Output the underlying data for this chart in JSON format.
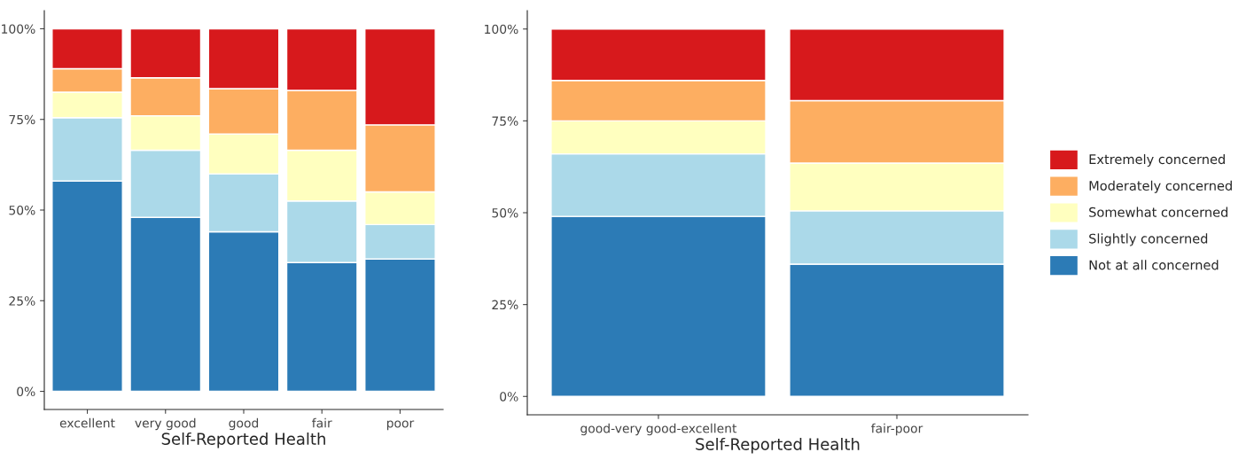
{
  "chart_data": [
    {
      "type": "bar",
      "stacked": true,
      "xlabel": "Self-Reported Health",
      "categories": [
        "excellent",
        "very good",
        "good",
        "fair",
        "poor"
      ],
      "ylim": [
        -5,
        105
      ],
      "yticks": [
        {
          "value": 0,
          "label": "0%"
        },
        {
          "value": 25,
          "label": "25%"
        },
        {
          "value": 50,
          "label": "50%"
        },
        {
          "value": 75,
          "label": "75%"
        },
        {
          "value": 100,
          "label": "100%"
        }
      ],
      "grid": false,
      "legend": false,
      "series": [
        {
          "color": "#2c7bb6",
          "values": [
            58,
            48,
            44,
            35.5,
            36.5
          ]
        },
        {
          "color": "#abd9e9",
          "values": [
            17.5,
            18.5,
            16,
            17,
            9.5
          ]
        },
        {
          "color": "#ffffbf",
          "values": [
            7,
            9.5,
            11,
            14,
            9
          ]
        },
        {
          "color": "#fdae61",
          "values": [
            6.5,
            10.5,
            12.5,
            16.5,
            18.5
          ]
        },
        {
          "color": "#d7191c",
          "values": [
            11,
            13.5,
            16.5,
            17,
            26.5
          ]
        }
      ]
    },
    {
      "type": "bar",
      "stacked": true,
      "xlabel": "Self-Reported Health",
      "categories": [
        "good-very good-excellent",
        "fair-poor"
      ],
      "ylim": [
        -5,
        105
      ],
      "yticks": [
        {
          "value": 0,
          "label": "0%"
        },
        {
          "value": 25,
          "label": "25%"
        },
        {
          "value": 50,
          "label": "50%"
        },
        {
          "value": 75,
          "label": "75%"
        },
        {
          "value": 100,
          "label": "100%"
        }
      ],
      "grid": false,
      "legend": "right",
      "series": [
        {
          "name": "Not at all concerned",
          "color": "#2c7bb6",
          "values": [
            49,
            36
          ]
        },
        {
          "name": "Slightly concerned",
          "color": "#abd9e9",
          "values": [
            17,
            14.5
          ]
        },
        {
          "name": "Somewhat concerned",
          "color": "#ffffbf",
          "values": [
            9,
            13
          ]
        },
        {
          "name": "Moderately concerned",
          "color": "#fdae61",
          "values": [
            11,
            17
          ]
        },
        {
          "name": "Extremely concerned",
          "color": "#d7191c",
          "values": [
            14,
            19.5
          ]
        }
      ]
    }
  ]
}
